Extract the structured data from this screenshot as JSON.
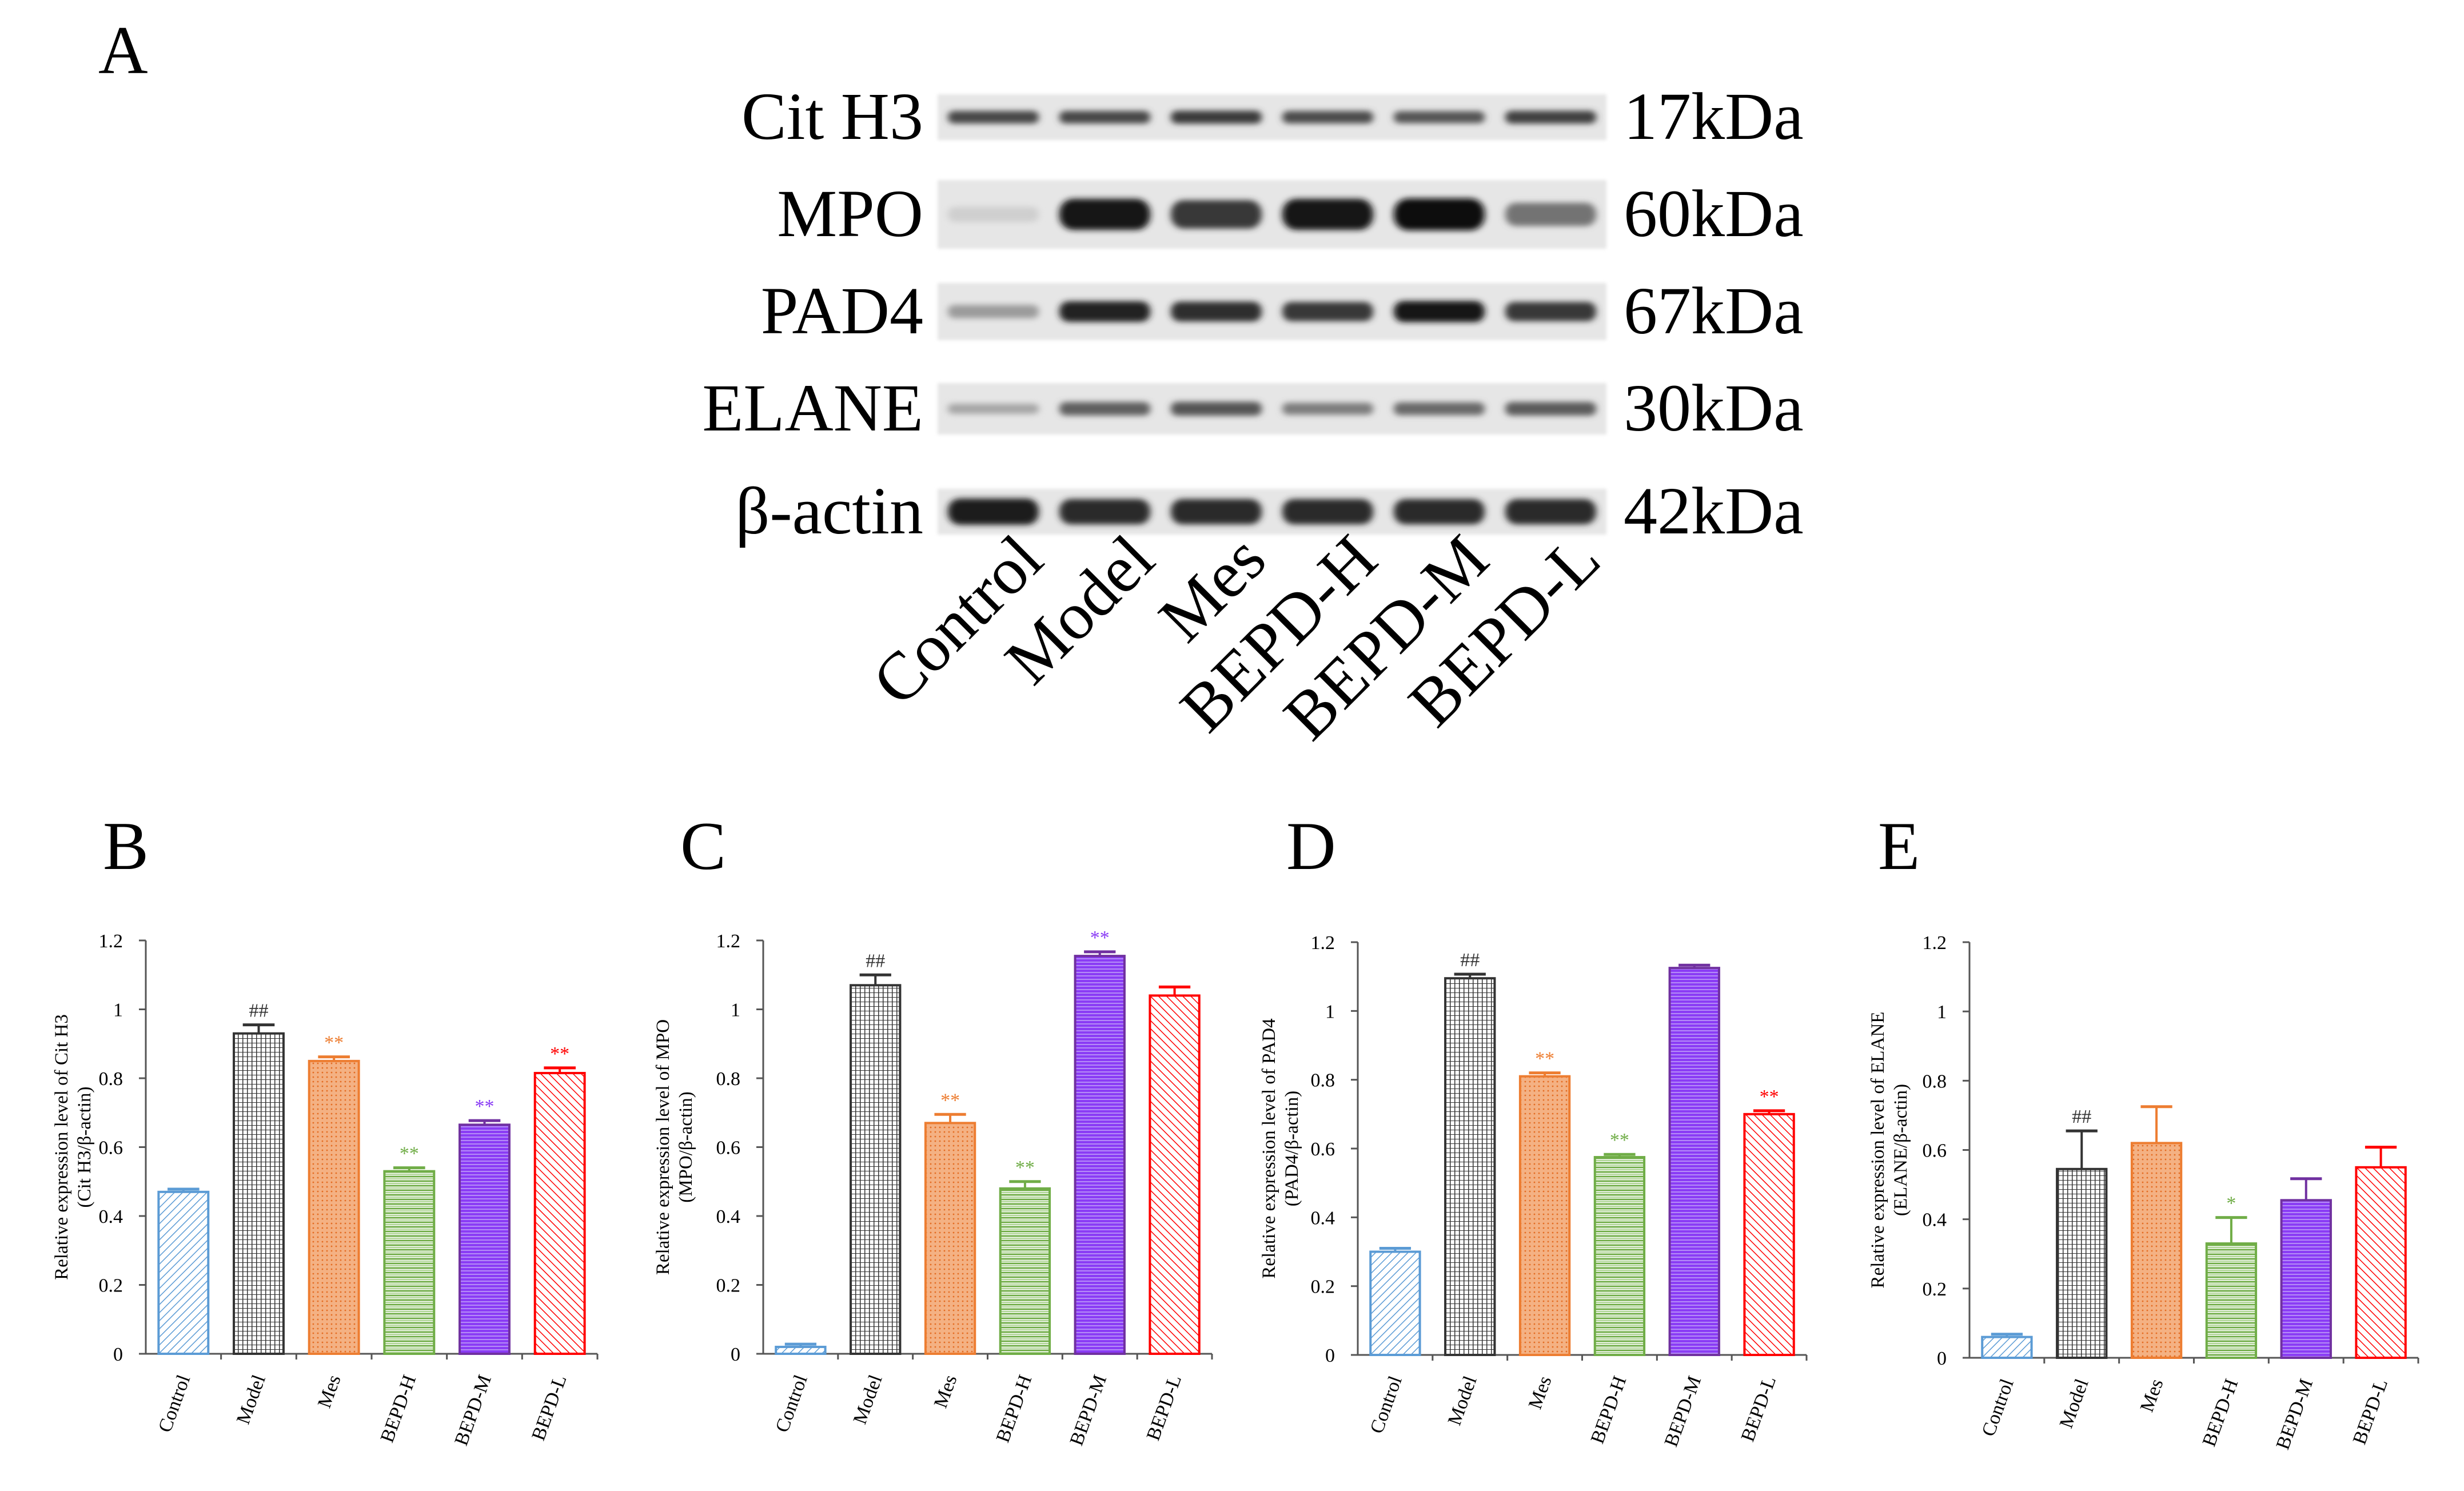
{
  "figure": {
    "panel_a": {
      "letter": "A",
      "blot_rows": [
        {
          "protein": "Cit H3",
          "weight": "17kDa"
        },
        {
          "protein": "MPO",
          "weight": "60kDa"
        },
        {
          "protein": "PAD4",
          "weight": "67kDa"
        },
        {
          "protein": "ELANE",
          "weight": "30kDa"
        },
        {
          "protein": "β-actin",
          "weight": "42kDa"
        }
      ],
      "lanes": [
        "Control",
        "Model",
        "Mes",
        "BEPD-H",
        "BEPD-M",
        "BEPD-L"
      ],
      "band_intensity": [
        [
          0.72,
          0.72,
          0.78,
          0.7,
          0.65,
          0.75
        ],
        [
          0.04,
          0.95,
          0.8,
          0.95,
          1.0,
          0.5
        ],
        [
          0.3,
          0.9,
          0.85,
          0.8,
          0.95,
          0.8
        ],
        [
          0.25,
          0.6,
          0.65,
          0.45,
          0.55,
          0.62
        ],
        [
          0.92,
          0.86,
          0.86,
          0.86,
          0.86,
          0.86
        ]
      ]
    },
    "colors": {
      "control": "#5b9bd5",
      "model": "#333333",
      "mes": "#ed7d31",
      "bepd_h": "#70ad47",
      "bepd_m": "#7030a0",
      "bepd_m_fill": "#8a3cf5",
      "bepd_l": "#ff0000"
    }
  },
  "chart_data": [
    {
      "type": "bar",
      "letter": "B",
      "ylabel_line1": "Relative expression level of Cit H3",
      "ylabel_line2": "(Cit H3/β-actin)",
      "categories": [
        "Control",
        "Model",
        "Mes",
        "BEPD-H",
        "BEPD-M",
        "BEPD-L"
      ],
      "values": [
        0.47,
        0.93,
        0.85,
        0.53,
        0.665,
        0.815
      ],
      "errors": [
        0.008,
        0.025,
        0.012,
        0.01,
        0.012,
        0.015
      ],
      "annotations": [
        "",
        "##",
        "**",
        "**",
        "**",
        "**"
      ],
      "ylim": [
        0,
        1.2
      ],
      "yticks": [
        "0",
        "0.2",
        "0.4",
        "0.6",
        "0.8",
        "1",
        "1.2"
      ]
    },
    {
      "type": "bar",
      "letter": "C",
      "ylabel_line1": "Relative expression level of MPO",
      "ylabel_line2": "(MPO/β-actin)",
      "categories": [
        "Control",
        "Model",
        "Mes",
        "BEPD-H",
        "BEPD-M",
        "BEPD-L"
      ],
      "values": [
        0.02,
        1.07,
        0.67,
        0.48,
        1.155,
        1.04
      ],
      "errors": [
        0.008,
        0.03,
        0.025,
        0.02,
        0.012,
        0.025
      ],
      "annotations": [
        "",
        "##",
        "**",
        "**",
        "**",
        ""
      ],
      "ylim": [
        0,
        1.2
      ],
      "yticks": [
        "0",
        "0.2",
        "0.4",
        "0.6",
        "0.8",
        "1",
        "1.2"
      ]
    },
    {
      "type": "bar",
      "letter": "D",
      "ylabel_line1": "Relative expression level of PAD4",
      "ylabel_line2": "(PAD4/β-actin)",
      "categories": [
        "Control",
        "Model",
        "Mes",
        "BEPD-H",
        "BEPD-M",
        "BEPD-L"
      ],
      "values": [
        0.3,
        1.095,
        0.81,
        0.575,
        1.125,
        0.7
      ],
      "errors": [
        0.01,
        0.012,
        0.01,
        0.008,
        0.008,
        0.01
      ],
      "annotations": [
        "",
        "##",
        "**",
        "**",
        "",
        "**"
      ],
      "ylim": [
        0,
        1.2
      ],
      "yticks": [
        "0",
        "0.2",
        "0.4",
        "0.6",
        "0.8",
        "1",
        "1.2"
      ]
    },
    {
      "type": "bar",
      "letter": "E",
      "ylabel_line1": "Relative expression level of ELANE",
      "ylabel_line2": "(ELANE/β-actin)",
      "categories": [
        "Control",
        "Model",
        "Mes",
        "BEPD-H",
        "BEPD-M",
        "BEPD-L"
      ],
      "values": [
        0.06,
        0.545,
        0.62,
        0.33,
        0.455,
        0.55
      ],
      "errors": [
        0.008,
        0.11,
        0.105,
        0.075,
        0.062,
        0.058
      ],
      "annotations": [
        "",
        "##",
        "",
        "*",
        "",
        ""
      ],
      "ylim": [
        0,
        1.2
      ],
      "yticks": [
        "0",
        "0.2",
        "0.4",
        "0.6",
        "0.8",
        "1",
        "1.2"
      ]
    }
  ]
}
